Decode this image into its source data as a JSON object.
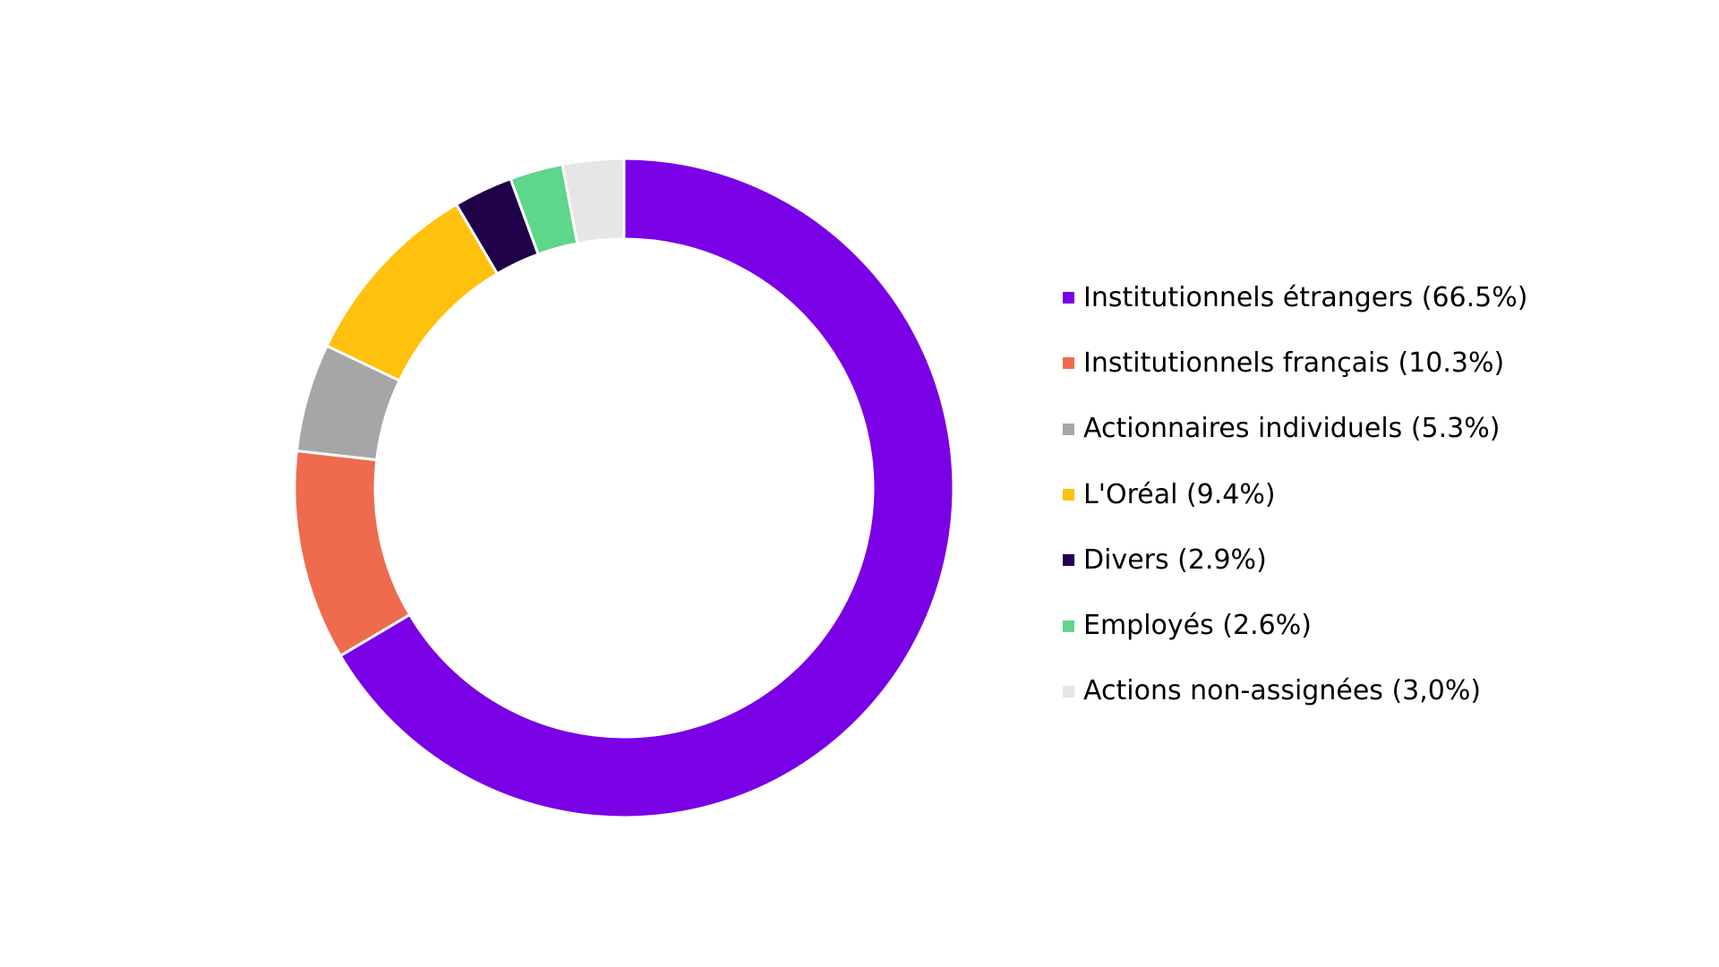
{
  "chart_data": {
    "type": "pie",
    "variant": "donut",
    "legend_position": "right",
    "slices": [
      {
        "label": "Institutionnels étrangers (66.5%)",
        "value": 66.5,
        "color": "#7a00e6"
      },
      {
        "label": "Institutionnels français (10.3%)",
        "value": 10.3,
        "color": "#ee6c4d"
      },
      {
        "label": "Actionnaires individuels (5.3%)",
        "value": 5.3,
        "color": "#a6a6a6"
      },
      {
        "label": "L'Oréal (9.4%)",
        "value": 9.4,
        "color": "#ffc10e"
      },
      {
        "label": "Divers (2.9%)",
        "value": 2.9,
        "color": "#1f0049"
      },
      {
        "label": "Employés (2.6%)",
        "value": 2.6,
        "color": "#5ed68b"
      },
      {
        "label": "Actions non-assignées (3,0%)",
        "value": 3.0,
        "color": "#e6e6e6"
      }
    ]
  }
}
